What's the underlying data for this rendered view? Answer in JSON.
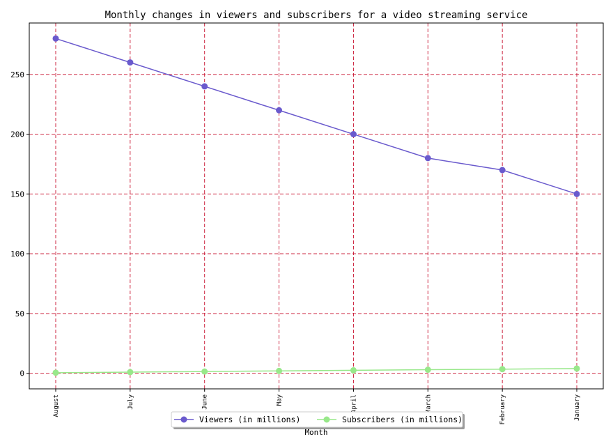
{
  "chart_data": {
    "type": "line",
    "title": "Monthly changes in viewers and subscribers for a video streaming service",
    "xlabel": "Month",
    "ylabel": "",
    "categories": [
      "August",
      "July",
      "June",
      "May",
      "April",
      "March",
      "February",
      "January"
    ],
    "ylim": [
      -13,
      293
    ],
    "yticks": [
      0,
      50,
      100,
      150,
      200,
      250
    ],
    "grid": true,
    "grid_color": "#c8102e",
    "legend_position": "bottom-center",
    "series": [
      {
        "name": "Viewers (in millions)",
        "color": "#6a5acd",
        "values": [
          280,
          260,
          240,
          220,
          200,
          180,
          170,
          150
        ]
      },
      {
        "name": "Subscribers (in millions)",
        "color": "#98e88a",
        "values": [
          0.5,
          1,
          1.5,
          2,
          2.5,
          3,
          3.5,
          4
        ]
      }
    ]
  }
}
